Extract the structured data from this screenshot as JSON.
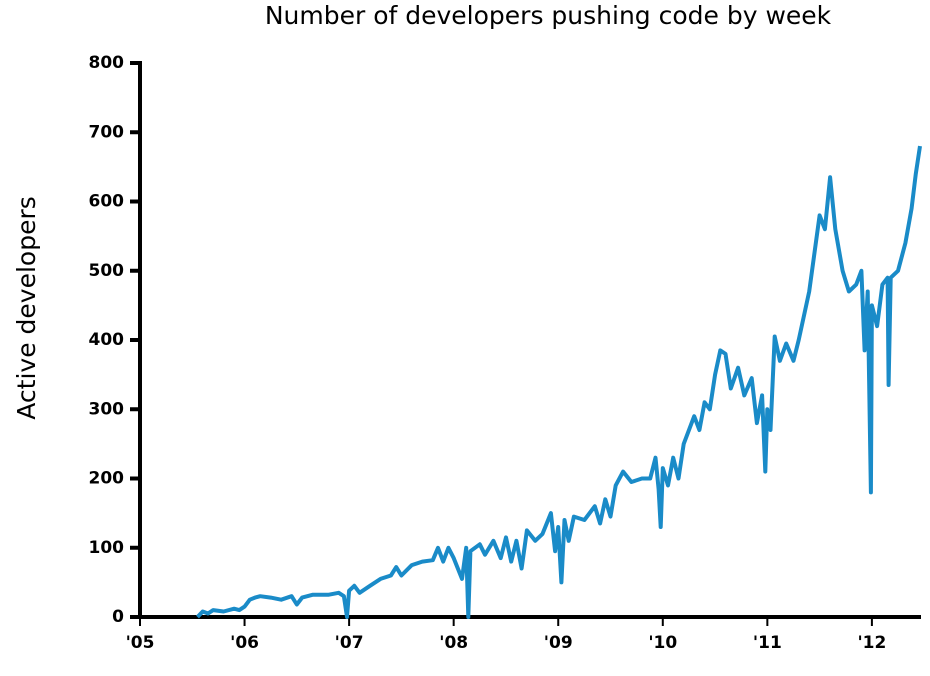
{
  "chart_data": {
    "type": "line",
    "title": "Number of developers pushing code by week",
    "y_label": "Active developers",
    "color": "#1a8bc8",
    "xlim": [
      2005,
      2012.46
    ],
    "xticks": [
      {
        "value": 2005,
        "label": "'05"
      },
      {
        "value": 2006,
        "label": "'06"
      },
      {
        "value": 2007,
        "label": "'07"
      },
      {
        "value": 2008,
        "label": "'08"
      },
      {
        "value": 2009,
        "label": "'09"
      },
      {
        "value": 2010,
        "label": "'10"
      },
      {
        "value": 2011,
        "label": "'11"
      },
      {
        "value": 2012,
        "label": "'12"
      }
    ],
    "ylim": [
      0,
      800
    ],
    "yticks": [
      0,
      100,
      200,
      300,
      400,
      500,
      600,
      700,
      800
    ],
    "x": [
      2005.55,
      2005.6,
      2005.65,
      2005.7,
      2005.8,
      2005.9,
      2005.95,
      2006.0,
      2006.05,
      2006.1,
      2006.15,
      2006.25,
      2006.35,
      2006.45,
      2006.5,
      2006.55,
      2006.65,
      2006.8,
      2006.9,
      2006.95,
      2006.98,
      2007.0,
      2007.05,
      2007.1,
      2007.2,
      2007.3,
      2007.4,
      2007.45,
      2007.5,
      2007.6,
      2007.7,
      2007.8,
      2007.85,
      2007.9,
      2007.95,
      2008.0,
      2008.08,
      2008.12,
      2008.14,
      2008.16,
      2008.25,
      2008.3,
      2008.38,
      2008.45,
      2008.5,
      2008.55,
      2008.6,
      2008.65,
      2008.7,
      2008.78,
      2008.85,
      2008.93,
      2008.97,
      2009.0,
      2009.03,
      2009.06,
      2009.1,
      2009.15,
      2009.25,
      2009.35,
      2009.4,
      2009.45,
      2009.5,
      2009.55,
      2009.62,
      2009.7,
      2009.8,
      2009.88,
      2009.93,
      2009.96,
      2009.98,
      2010.0,
      2010.05,
      2010.1,
      2010.15,
      2010.2,
      2010.3,
      2010.35,
      2010.4,
      2010.45,
      2010.5,
      2010.55,
      2010.6,
      2010.65,
      2010.72,
      2010.78,
      2010.85,
      2010.9,
      2010.95,
      2010.98,
      2011.0,
      2011.03,
      2011.07,
      2011.12,
      2011.18,
      2011.25,
      2011.3,
      2011.4,
      2011.5,
      2011.55,
      2011.6,
      2011.65,
      2011.72,
      2011.78,
      2011.85,
      2011.9,
      2011.93,
      2011.96,
      2011.99,
      2012.0,
      2012.05,
      2012.1,
      2012.15,
      2012.16,
      2012.18,
      2012.25,
      2012.32,
      2012.38,
      2012.42,
      2012.46
    ],
    "values": [
      0,
      8,
      5,
      10,
      8,
      12,
      10,
      15,
      25,
      28,
      30,
      28,
      25,
      30,
      18,
      28,
      32,
      32,
      35,
      30,
      0,
      38,
      45,
      35,
      45,
      55,
      60,
      72,
      60,
      75,
      80,
      82,
      100,
      80,
      100,
      85,
      55,
      100,
      0,
      95,
      105,
      90,
      110,
      85,
      115,
      80,
      110,
      70,
      125,
      110,
      120,
      150,
      95,
      130,
      50,
      140,
      110,
      145,
      140,
      160,
      135,
      170,
      145,
      190,
      210,
      195,
      200,
      200,
      230,
      185,
      130,
      215,
      190,
      230,
      200,
      250,
      290,
      270,
      310,
      300,
      350,
      385,
      380,
      330,
      360,
      320,
      345,
      280,
      320,
      210,
      300,
      270,
      405,
      370,
      395,
      370,
      400,
      470,
      580,
      560,
      635,
      560,
      500,
      470,
      480,
      500,
      385,
      470,
      180,
      450,
      420,
      480,
      490,
      335,
      490,
      500,
      540,
      590,
      640,
      680
    ]
  }
}
